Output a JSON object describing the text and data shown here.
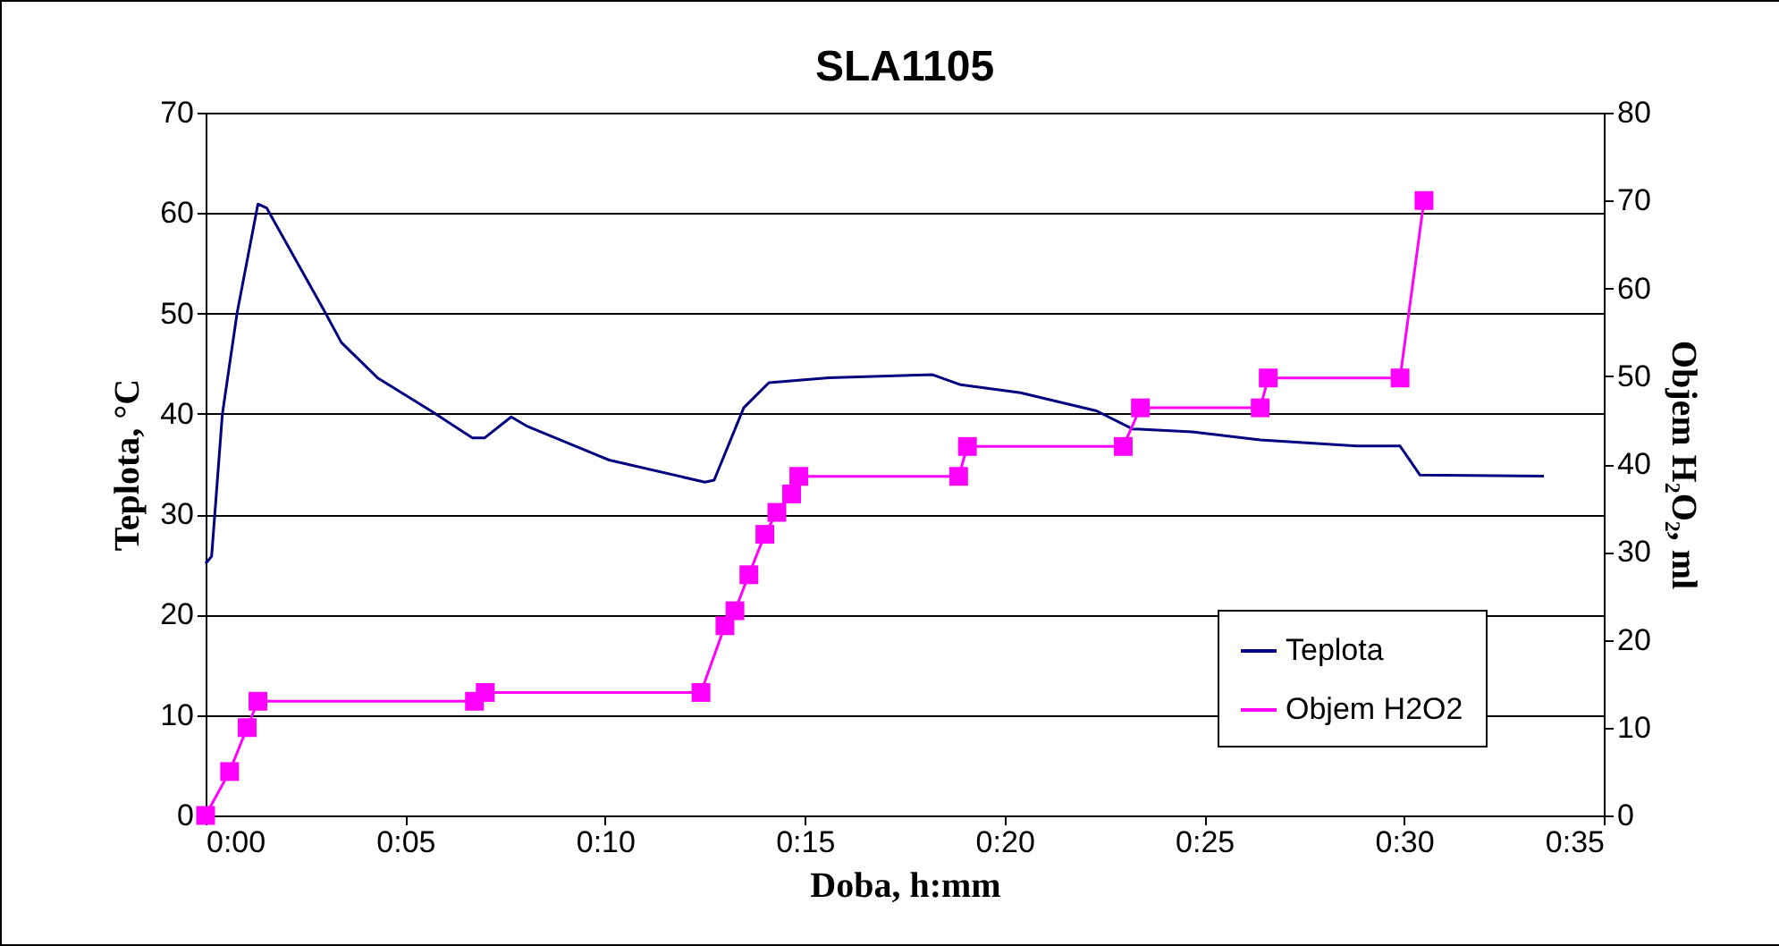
{
  "chart_data": {
    "type": "line",
    "title": "SLA1105",
    "xlabel": "Doba, h:mm",
    "ylabel": "Teplota, °C",
    "y2label": "Objem H₂O₂, ml",
    "xlim": [
      0,
      35
    ],
    "xticks": [
      {
        "value": 0,
        "label": "0:00"
      },
      {
        "value": 5,
        "label": "0:05"
      },
      {
        "value": 10,
        "label": "0:10"
      },
      {
        "value": 15,
        "label": "0:15"
      },
      {
        "value": 20,
        "label": "0:20"
      },
      {
        "value": 25,
        "label": "0:25"
      },
      {
        "value": 30,
        "label": "0:30"
      },
      {
        "value": 35,
        "label": "0:35"
      }
    ],
    "ylim": [
      0,
      70
    ],
    "yticks": [
      0,
      10,
      20,
      30,
      40,
      50,
      60,
      70
    ],
    "y2lim": [
      0,
      80
    ],
    "y2ticks": [
      0,
      10,
      20,
      30,
      40,
      50,
      60,
      70,
      80
    ],
    "grid": "y",
    "legend": "bottom right",
    "line_style": "solid",
    "series": [
      {
        "name": "Teplota",
        "color": "#000080",
        "marker": "none",
        "x": [
          0,
          0.15,
          0.42,
          0.79,
          1.31,
          1.53,
          2.95,
          3.4,
          4.3,
          5.64,
          6.68,
          6.98,
          7.65,
          8.03,
          10.1,
          12.5,
          12.73,
          13.47,
          14.1,
          15.6,
          18.2,
          18.9,
          20.4,
          22.3,
          23.2,
          24.7,
          26.4,
          28.8,
          29.9,
          30.4,
          33.5
        ],
        "values": [
          25.1,
          25.8,
          40,
          50.1,
          60.9,
          60.5,
          50.4,
          47.1,
          43.6,
          40.3,
          37.6,
          37.6,
          39.7,
          38.8,
          35.4,
          33.2,
          33.4,
          40.6,
          43.1,
          43.6,
          43.9,
          42.9,
          42.1,
          40.3,
          38.5,
          38.2,
          37.4,
          36.8,
          36.8,
          33.9,
          33.8
        ]
      },
      {
        "name": "Objem H2O2",
        "color": "#ff00ff",
        "marker": "square",
        "axis": "y2",
        "x": [
          0,
          0.6,
          1.04,
          1.31,
          6.73,
          7.0,
          12.4,
          13.0,
          13.25,
          13.6,
          14.0,
          14.3,
          14.67,
          14.85,
          18.85,
          19.07,
          22.97,
          23.4,
          26.4,
          26.6,
          29.9,
          30.5
        ],
        "values": [
          0,
          5,
          10,
          13,
          13,
          14,
          14,
          21.6,
          23.3,
          27.4,
          32,
          34.5,
          36.6,
          38.6,
          38.6,
          42,
          42,
          46.4,
          46.4,
          49.8,
          49.8,
          70
        ]
      }
    ]
  }
}
